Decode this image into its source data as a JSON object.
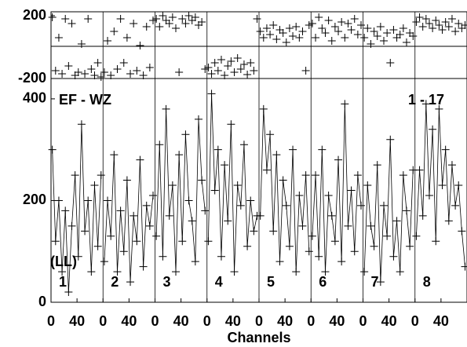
{
  "chart_data": [
    {
      "type": "scatter",
      "color": "#000000",
      "ylim": [
        -200,
        225
      ],
      "yticks": [
        -200,
        200
      ],
      "series": [
        {
          "values": [
            190,
            -150,
            60,
            -170,
            180,
            -120,
            150,
            -180,
            -160,
            20,
            -170,
            180,
            -140,
            -180,
            -100,
            -190
          ]
        },
        {
          "values": [
            -160,
            40,
            -180,
            100,
            -140,
            180,
            -100,
            60,
            -170,
            150,
            -150,
            10,
            -180,
            130,
            -130,
            170
          ]
        },
        {
          "values": [
            180,
            130,
            200,
            170,
            150,
            190,
            120,
            -160,
            180,
            150,
            200,
            170,
            190,
            140,
            160,
            -140
          ]
        },
        {
          "values": [
            -130,
            -170,
            -100,
            -150,
            -80,
            -180,
            -120,
            -90,
            -160,
            -70,
            -140,
            -110,
            -175,
            -100,
            -150,
            180
          ]
        },
        {
          "values": [
            100,
            60,
            120,
            80,
            140,
            50,
            110,
            90,
            30,
            120,
            70,
            130,
            60,
            100,
            -150,
            140
          ]
        },
        {
          "values": [
            150,
            60,
            190,
            120,
            90,
            170,
            40,
            130,
            100,
            160,
            60,
            150,
            110,
            180,
            80,
            140
          ]
        },
        {
          "values": [
            60,
            120,
            20,
            100,
            70,
            130,
            40,
            90,
            -100,
            110,
            60,
            80,
            120,
            30,
            90,
            70
          ]
        },
        {
          "values": [
            160,
            190,
            130,
            180,
            150,
            120,
            170,
            140,
            110,
            160,
            130,
            180,
            100,
            150,
            120,
            140
          ]
        }
      ]
    },
    {
      "type": "line",
      "color": "#000000",
      "annotations": [
        "EF - WZ",
        "1 - 17",
        "(LL)"
      ],
      "xlabel": "Channels",
      "x": [
        2,
        7,
        12,
        17,
        22,
        27,
        32,
        37,
        42,
        47,
        52,
        57,
        62,
        67,
        72,
        77
      ],
      "xlim": [
        0,
        80
      ],
      "xticks": [
        0,
        40
      ],
      "ylim": [
        0,
        440
      ],
      "yticks": [
        0,
        200,
        400
      ],
      "series": [
        {
          "name": "1",
          "values": [
            300,
            120,
            200,
            60,
            180,
            20,
            150,
            250,
            90,
            350,
            140,
            200,
            60,
            230,
            110,
            250
          ]
        },
        {
          "name": "2",
          "values": [
            80,
            200,
            130,
            290,
            60,
            180,
            100,
            240,
            40,
            170,
            120,
            280,
            70,
            190,
            150,
            210
          ]
        },
        {
          "name": "3",
          "values": [
            130,
            310,
            90,
            380,
            170,
            230,
            60,
            290,
            120,
            330,
            200,
            160,
            80,
            360,
            240,
            180
          ]
        },
        {
          "name": "4",
          "values": [
            120,
            410,
            220,
            300,
            90,
            270,
            160,
            350,
            60,
            230,
            190,
            310,
            110,
            200,
            140,
            170
          ]
        },
        {
          "name": "5",
          "values": [
            170,
            380,
            260,
            330,
            140,
            290,
            80,
            240,
            190,
            110,
            300,
            60,
            210,
            150,
            250,
            100
          ]
        },
        {
          "name": "6",
          "values": [
            130,
            250,
            90,
            300,
            60,
            210,
            170,
            120,
            280,
            80,
            390,
            150,
            220,
            100,
            250,
            190
          ]
        },
        {
          "name": "7",
          "values": [
            60,
            230,
            150,
            110,
            270,
            40,
            190,
            130,
            320,
            90,
            160,
            60,
            250,
            180,
            110,
            260
          ]
        },
        {
          "name": "8",
          "values": [
            130,
            260,
            170,
            390,
            210,
            340,
            120,
            380,
            230,
            300,
            160,
            270,
            190,
            230,
            140,
            70
          ]
        }
      ]
    }
  ]
}
